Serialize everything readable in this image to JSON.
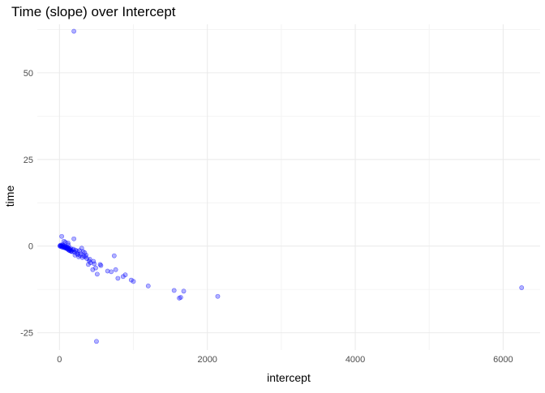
{
  "chart_data": {
    "type": "scatter",
    "title": "Time (slope) over Intercept",
    "xlabel": "intercept",
    "ylabel": "time",
    "xlim": [
      -300,
      6500
    ],
    "ylim": [
      -30,
      64
    ],
    "x_ticks": [
      0,
      2000,
      4000,
      6000
    ],
    "x_tick_labels": [
      "0",
      "2000",
      "4000",
      "6000"
    ],
    "x_minor_ticks": [
      1000,
      3000,
      5000
    ],
    "y_ticks": [
      -25,
      0,
      25,
      50
    ],
    "y_tick_labels": [
      "-25",
      "0",
      "25",
      "50"
    ],
    "y_minor_ticks": [
      -12.5,
      12.5,
      37.5,
      62.5
    ],
    "grid": true,
    "legend": "none",
    "point_color": "#0000ff",
    "point_alpha": 0.3,
    "series": [
      {
        "points": [
          [
            195,
            62
          ],
          [
            6250,
            -12
          ],
          [
            2140,
            -14.5
          ],
          [
            1680,
            -13
          ],
          [
            1620,
            -15
          ],
          [
            1640,
            -14.8
          ],
          [
            1550,
            -12.8
          ],
          [
            1200,
            -11.5
          ],
          [
            1000,
            -10.2
          ],
          [
            970,
            -9.8
          ],
          [
            890,
            -8.3
          ],
          [
            860,
            -8.8
          ],
          [
            790,
            -9.3
          ],
          [
            760,
            -6.8
          ],
          [
            740,
            -2.8
          ],
          [
            700,
            -7.4
          ],
          [
            650,
            -7.2
          ],
          [
            560,
            -5.6
          ],
          [
            550,
            -5.3
          ],
          [
            510,
            -8.1
          ],
          [
            490,
            -6.3
          ],
          [
            470,
            -5.1
          ],
          [
            460,
            -4.4
          ],
          [
            450,
            -6.8
          ],
          [
            420,
            -4.8
          ],
          [
            410,
            -3.8
          ],
          [
            400,
            -4.3
          ],
          [
            390,
            -5.3
          ],
          [
            370,
            -3.6
          ],
          [
            360,
            -2.6
          ],
          [
            350,
            -3.1
          ],
          [
            340,
            -1.9
          ],
          [
            330,
            -2.9
          ],
          [
            320,
            -1.6
          ],
          [
            310,
            -3.3
          ],
          [
            300,
            -0.6
          ],
          [
            290,
            -2.2
          ],
          [
            280,
            -2.7
          ],
          [
            270,
            -1.3
          ],
          [
            260,
            -3.1
          ],
          [
            250,
            -2.4
          ],
          [
            240,
            -1.5
          ],
          [
            230,
            -2.1
          ],
          [
            220,
            -1.2
          ],
          [
            210,
            -2.6
          ],
          [
            200,
            -1.7
          ],
          [
            195,
            2.1
          ],
          [
            190,
            -0.9
          ],
          [
            180,
            -1.1
          ],
          [
            170,
            -1.6
          ],
          [
            160,
            -1.4
          ],
          [
            150,
            -0.6
          ],
          [
            140,
            -0.9
          ],
          [
            130,
            -1.2
          ],
          [
            120,
            -0.5
          ],
          [
            110,
            -0.8
          ],
          [
            100,
            -0.3
          ],
          [
            90,
            -0.6
          ],
          [
            80,
            -0.2
          ],
          [
            70,
            -0.4
          ],
          [
            60,
            0.2
          ],
          [
            50,
            -0.2
          ],
          [
            40,
            0.4
          ],
          [
            30,
            0.1
          ],
          [
            20,
            0.3
          ],
          [
            10,
            0.2
          ],
          [
            5,
            0.0
          ],
          [
            15,
            -0.1
          ],
          [
            25,
            0.0
          ],
          [
            35,
            -0.3
          ],
          [
            45,
            0.1
          ],
          [
            55,
            -0.4
          ],
          [
            65,
            -0.1
          ],
          [
            75,
            -0.5
          ],
          [
            85,
            -0.3
          ],
          [
            95,
            -0.7
          ],
          [
            105,
            -0.4
          ],
          [
            115,
            -1.0
          ],
          [
            125,
            -0.7
          ],
          [
            135,
            -1.3
          ],
          [
            145,
            -1.0
          ],
          [
            155,
            -1.5
          ],
          [
            30,
            2.8
          ],
          [
            80,
            1.1
          ],
          [
            115,
            0.9
          ],
          [
            60,
            1.4
          ],
          [
            120,
            0.3
          ],
          [
            500,
            -27.5
          ]
        ]
      }
    ]
  }
}
